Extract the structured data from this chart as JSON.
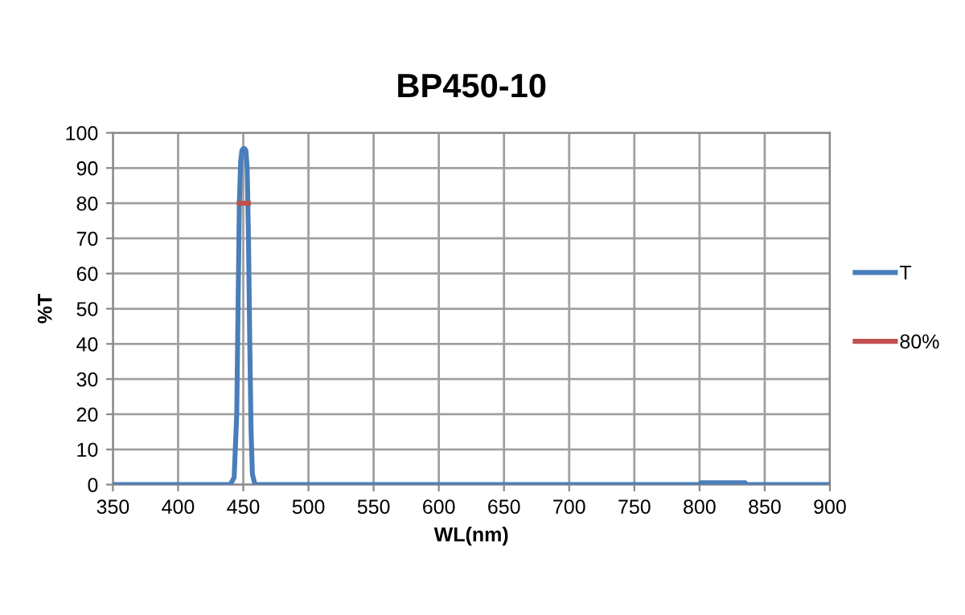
{
  "chart_data": {
    "type": "line",
    "title": "BP450-10",
    "xlabel": "WL(nm)",
    "ylabel": "%T",
    "xlim": [
      350,
      900
    ],
    "xticks": [
      350,
      400,
      450,
      500,
      550,
      600,
      650,
      700,
      750,
      800,
      850,
      900
    ],
    "ylim": [
      0,
      100
    ],
    "yticks": [
      0,
      10,
      20,
      30,
      40,
      50,
      60,
      70,
      80,
      90,
      100
    ],
    "grid": true,
    "legend": "right",
    "marker": "none",
    "line_style": "solid",
    "series": [
      {
        "name": "T",
        "color": "#4a7ebb",
        "x": [
          350,
          440,
          443,
          445,
          446,
          447,
          448,
          449,
          450,
          451,
          452,
          453,
          454,
          455,
          456,
          457,
          459,
          800,
          801,
          835,
          836,
          900
        ],
        "values": [
          0,
          0,
          2,
          20,
          50,
          80,
          92,
          95,
          95.5,
          95.5,
          95,
          90,
          70,
          40,
          15,
          3,
          0,
          0,
          0.5,
          0.5,
          0,
          0
        ]
      },
      {
        "name": "80%",
        "color": "#c0504d",
        "x": [
          447,
          454
        ],
        "values": [
          80,
          80
        ]
      }
    ]
  }
}
